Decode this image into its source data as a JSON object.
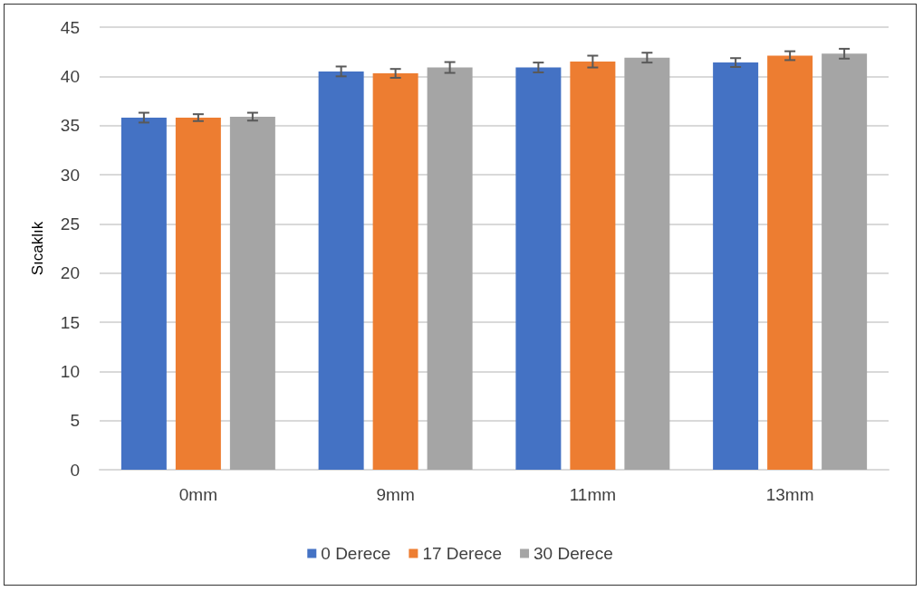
{
  "chart_data": {
    "type": "bar",
    "ylabel": "Sıcaklık",
    "categories": [
      "0mm",
      "9mm",
      "11mm",
      "13mm"
    ],
    "series": [
      {
        "name": "0 Derece",
        "color": "#4472c4",
        "values": [
          35.8,
          40.5,
          40.9,
          41.4
        ],
        "errors": [
          0.5,
          0.5,
          0.5,
          0.45
        ]
      },
      {
        "name": "17 Derece",
        "color": "#ed7d31",
        "values": [
          35.8,
          40.3,
          41.5,
          42.1
        ],
        "errors": [
          0.35,
          0.45,
          0.6,
          0.45
        ]
      },
      {
        "name": "30 Derece",
        "color": "#a5a5a5",
        "values": [
          35.9,
          40.9,
          41.9,
          42.3
        ],
        "errors": [
          0.4,
          0.55,
          0.5,
          0.5
        ]
      }
    ],
    "ylim": [
      0,
      45
    ],
    "yticks": [
      0,
      5,
      10,
      15,
      20,
      25,
      30,
      35,
      40,
      45
    ],
    "grid": "y",
    "legend": "bottom"
  }
}
